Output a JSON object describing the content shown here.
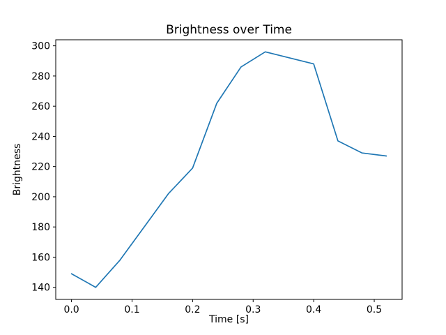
{
  "chart_data": {
    "type": "line",
    "title": "Brightness over Time",
    "xlabel": "Time [s]",
    "ylabel": "Brightness",
    "x": [
      0.0,
      0.04,
      0.08,
      0.12,
      0.16,
      0.2,
      0.24,
      0.28,
      0.32,
      0.36,
      0.4,
      0.44,
      0.48,
      0.52
    ],
    "y": [
      149,
      140,
      158,
      180,
      202,
      219,
      262,
      286,
      296,
      292,
      288,
      237,
      229,
      227
    ],
    "xlim": [
      -0.026,
      0.546
    ],
    "ylim": [
      132,
      304
    ],
    "x_ticks": [
      0.0,
      0.1,
      0.2,
      0.3,
      0.4,
      0.5
    ],
    "x_tick_labels": [
      "0.0",
      "0.1",
      "0.2",
      "0.3",
      "0.4",
      "0.5"
    ],
    "y_ticks": [
      140,
      160,
      180,
      200,
      220,
      240,
      260,
      280,
      300
    ],
    "y_tick_labels": [
      "140",
      "160",
      "180",
      "200",
      "220",
      "240",
      "260",
      "280",
      "300"
    ],
    "line_color": "#1f77b4",
    "axis_color": "#000000",
    "background": "#ffffff",
    "grid": false,
    "legend": "none"
  }
}
